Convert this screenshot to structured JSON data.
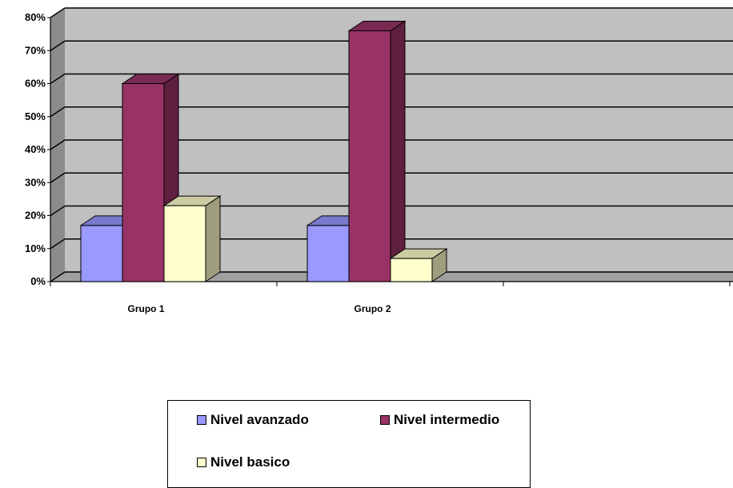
{
  "chart_data": {
    "type": "bar",
    "title": "",
    "xlabel": "",
    "ylabel": "",
    "categories": [
      "Grupo 1",
      "Grupo 2",
      ""
    ],
    "series": [
      {
        "name": "Nivel avanzado",
        "color": "#9999ff",
        "values": [
          0.17,
          0.17,
          null
        ]
      },
      {
        "name": "Nivel intermedio",
        "color": "#993366",
        "values": [
          0.6,
          0.76,
          null
        ]
      },
      {
        "name": "Nivel basico",
        "color": "#ffffcc",
        "values": [
          0.23,
          0.07,
          null
        ]
      }
    ],
    "ylim": [
      0,
      0.8
    ],
    "yticks": [
      "0%",
      "10%",
      "20%",
      "30%",
      "40%",
      "50%",
      "60%",
      "70%",
      "80%"
    ],
    "grid": true,
    "legend_position": "bottom"
  }
}
